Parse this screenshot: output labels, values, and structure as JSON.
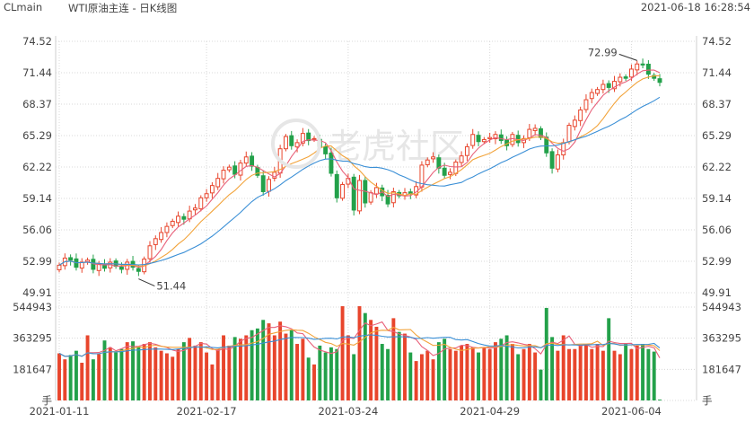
{
  "header": {
    "symbol": "CLmain",
    "title": "WTI原油主连 - 日K线图",
    "datetime": "2021-06-18 16:28:54"
  },
  "watermark": "老虎社区",
  "colors": {
    "up": "#e8452c",
    "down": "#23a14a",
    "ma_short": "#e8617a",
    "ma_mid": "#f2a33a",
    "ma_long": "#3a8fd6",
    "grid": "#d8d8d8"
  },
  "chart_data": [
    {
      "type": "candlestick",
      "title": "",
      "y_ticks": [
        "74.52",
        "71.44",
        "68.37",
        "65.29",
        "62.22",
        "59.14",
        "56.06",
        "52.99",
        "49.91"
      ],
      "ylim": [
        49.91,
        74.52
      ],
      "x_ticks": [
        "2021-01-11",
        "2021-02-17",
        "2021-03-24",
        "2021-04-29",
        "2021-06-04"
      ],
      "annotations": {
        "high": "72.99",
        "low": "51.44"
      },
      "closes": [
        52.6,
        53.3,
        53.1,
        52.4,
        52.9,
        53.1,
        52.2,
        52.7,
        52.3,
        52.9,
        52.5,
        52.2,
        52.9,
        52.4,
        52.0,
        53.2,
        54.5,
        55.2,
        55.8,
        56.4,
        56.9,
        57.4,
        57.1,
        57.9,
        58.2,
        59.2,
        59.6,
        60.4,
        61.1,
        61.9,
        62.2,
        61.5,
        62.6,
        63.2,
        62.3,
        61.4,
        59.8,
        61.0,
        61.7,
        64.0,
        65.2,
        64.3,
        64.6,
        65.5,
        64.8,
        65.0,
        64.2,
        63.5,
        61.6,
        59.2,
        60.5,
        61.1,
        58.0,
        60.9,
        58.7,
        59.7,
        60.2,
        59.4,
        58.6,
        59.8,
        59.4,
        59.7,
        59.6,
        60.3,
        62.4,
        62.9,
        63.2,
        62.1,
        61.4,
        61.7,
        62.7,
        63.3,
        64.2,
        65.4,
        64.7,
        64.9,
        65.1,
        65.4,
        64.8,
        64.3,
        65.4,
        64.6,
        65.0,
        65.9,
        66.0,
        65.1,
        63.6,
        62.1,
        63.4,
        64.6,
        66.3,
        66.8,
        67.8,
        68.8,
        69.5,
        69.8,
        70.3,
        70.0,
        70.6,
        71.0,
        70.9,
        71.8,
        72.3,
        72.2,
        71.3,
        70.9,
        70.5
      ],
      "volumes": [
        275000,
        240000,
        265000,
        290000,
        220000,
        380000,
        240000,
        270000,
        350000,
        310000,
        280000,
        300000,
        340000,
        345000,
        315000,
        330000,
        340000,
        310000,
        290000,
        275000,
        255000,
        300000,
        340000,
        365000,
        320000,
        340000,
        280000,
        210000,
        300000,
        380000,
        320000,
        370000,
        360000,
        380000,
        410000,
        420000,
        470000,
        450000,
        380000,
        460000,
        390000,
        410000,
        330000,
        360000,
        250000,
        210000,
        320000,
        280000,
        310000,
        300000,
        550000,
        380000,
        270000,
        550000,
        510000,
        470000,
        430000,
        330000,
        300000,
        480000,
        400000,
        390000,
        280000,
        230000,
        270000,
        290000,
        240000,
        340000,
        360000,
        300000,
        290000,
        320000,
        330000,
        310000,
        280000,
        310000,
        300000,
        340000,
        360000,
        380000,
        330000,
        270000,
        300000,
        330000,
        280000,
        180000,
        540000,
        370000,
        290000,
        380000,
        300000,
        300000,
        320000,
        330000,
        300000,
        330000,
        290000,
        480000,
        290000,
        270000,
        330000,
        300000,
        320000,
        330000,
        300000,
        285000,
        5000
      ],
      "vol_ticks": [
        "544943",
        "363295",
        "181647",
        "手"
      ]
    }
  ]
}
